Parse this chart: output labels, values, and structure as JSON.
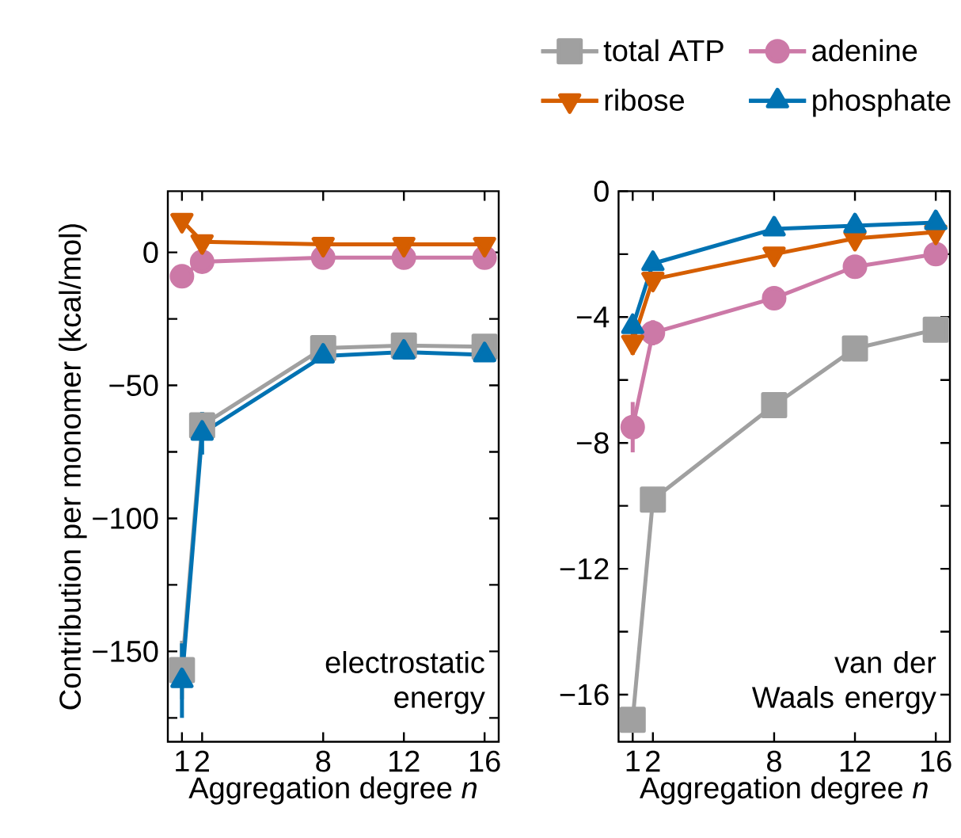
{
  "chart_data": [
    {
      "type": "line",
      "ylabel": "Contribution per monomer (kcal/mol)",
      "xlabel": "Aggregation degree *n*",
      "x": [
        1,
        2,
        8,
        12,
        16
      ],
      "xlim": [
        0.3,
        16.7
      ],
      "ylim": [
        -184,
        23
      ],
      "xticks": [
        1,
        2,
        8,
        12,
        16
      ],
      "yticks": [
        {
          "value": -175,
          "label": null
        },
        {
          "value": -150,
          "label": "−150"
        },
        {
          "value": -125,
          "label": null
        },
        {
          "value": -100,
          "label": "−100"
        },
        {
          "value": -75,
          "label": null
        },
        {
          "value": -50,
          "label": "−50"
        },
        {
          "value": -25,
          "label": null
        },
        0
      ],
      "annotations": [
        "electrostatic energy"
      ],
      "legend": false,
      "series": [
        {
          "color": "#a0a0a0",
          "marker": "square",
          "values": [
            -157,
            -65,
            -36,
            -35,
            -35.5
          ],
          "errors": [
            11,
            null,
            null,
            null,
            null
          ]
        },
        {
          "color": "#cc79a7",
          "marker": "circle",
          "values": [
            -9,
            -3.5,
            -2,
            -2,
            -2
          ]
        },
        {
          "color": "#d55e00",
          "marker": "triangle_down",
          "values": [
            12,
            4,
            3,
            3,
            3
          ]
        },
        {
          "color": "#0072b2",
          "marker": "triangle",
          "values": [
            -161,
            -68,
            -39,
            -37.5,
            -38.5
          ],
          "errors": [
            14,
            8,
            null,
            null,
            null
          ]
        }
      ]
    },
    {
      "type": "line",
      "xlabel": "Aggregation degree *n*",
      "x": [
        1,
        2,
        8,
        12,
        16
      ],
      "xlim": [
        0.3,
        16.7
      ],
      "ylim": [
        -17.5,
        0
      ],
      "xticks": [
        1,
        2,
        8,
        12,
        16
      ],
      "yticks": [
        {
          "value": -16,
          "label": "−16"
        },
        {
          "value": -14,
          "label": null
        },
        {
          "value": -12,
          "label": "−12"
        },
        {
          "value": -10,
          "label": null
        },
        {
          "value": -8,
          "label": "−8"
        },
        {
          "value": -6,
          "label": null
        },
        {
          "value": -4,
          "label": "−4"
        },
        {
          "value": -2,
          "label": null
        },
        0
      ],
      "annotations": [
        "van der Waals energy"
      ],
      "legend": "top",
      "series": [
        {
          "name": "total ATP",
          "color": "#a0a0a0",
          "marker": "square",
          "values": [
            -16.8,
            -9.8,
            -6.8,
            -5.0,
            -4.4
          ]
        },
        {
          "name": "adenine",
          "color": "#cc79a7",
          "marker": "circle",
          "values": [
            -7.5,
            -4.5,
            -3.4,
            -2.4,
            -2.0
          ],
          "errors": [
            0.8,
            0.4,
            null,
            null,
            null
          ]
        },
        {
          "name": "ribose",
          "color": "#d55e00",
          "marker": "triangle_down",
          "values": [
            -4.8,
            -2.8,
            -2.0,
            -1.5,
            -1.3
          ],
          "errors": [
            0.4,
            null,
            null,
            null,
            null
          ]
        },
        {
          "name": "phosphate",
          "color": "#0072b2",
          "marker": "triangle",
          "values": [
            -4.3,
            -2.3,
            -1.2,
            -1.1,
            -1.0
          ]
        }
      ]
    }
  ]
}
